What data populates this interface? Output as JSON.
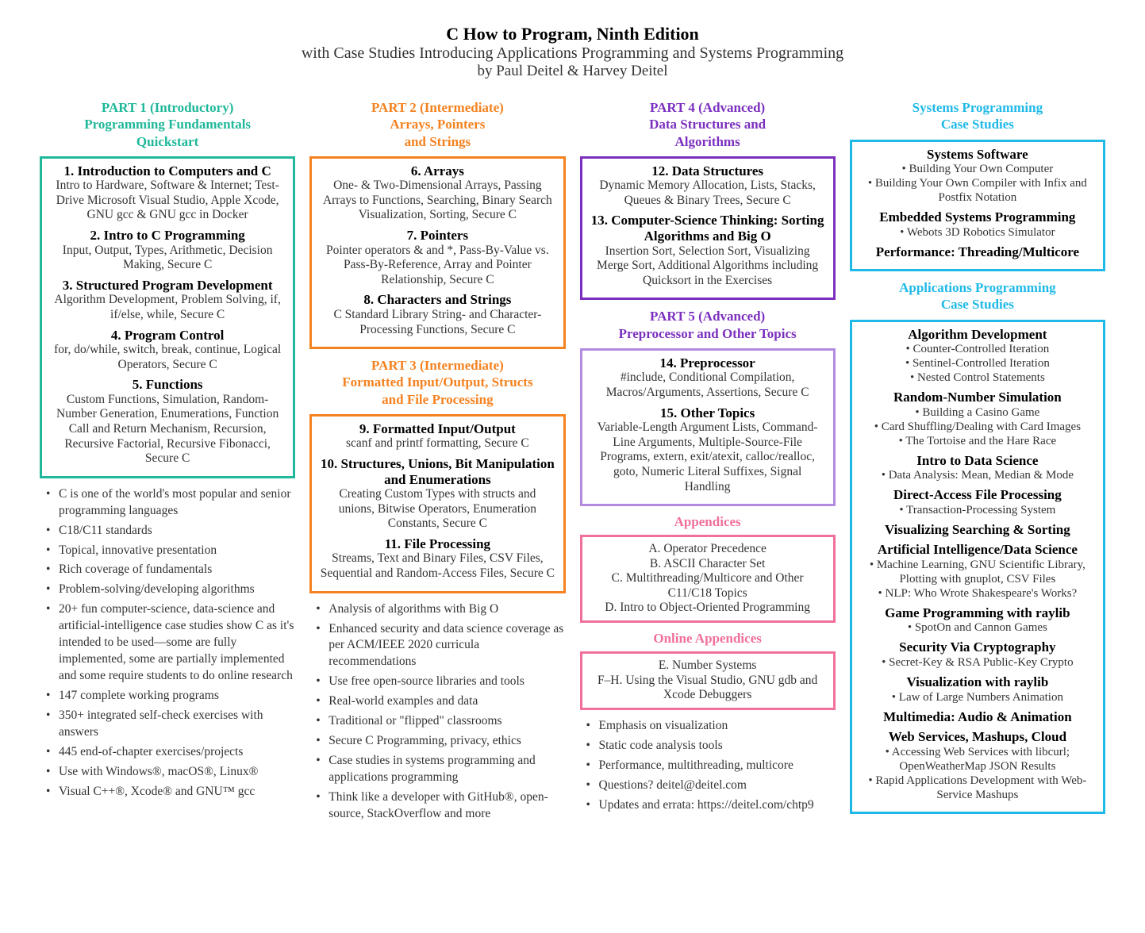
{
  "header": {
    "title": "C How to Program, Ninth Edition",
    "subtitle1": "with Case Studies Introducing Applications Programming and Systems Programming",
    "subtitle2": "by Paul Deitel & Harvey Deitel"
  },
  "colors": {
    "teal": "#1fb89a",
    "orange": "#f58220",
    "purple": "#7b2fbf",
    "lavender": "#b48ae0",
    "pink": "#f06f9b",
    "cyan": "#1fb9e8"
  },
  "part1": {
    "title": "PART 1 (Introductory)\nProgramming Fundamentals\nQuickstart",
    "chapters": [
      {
        "t": "1. Introduction to Computers and C",
        "d": "Intro to Hardware, Software & Internet; Test-Drive Microsoft Visual Studio, Apple Xcode, GNU gcc & GNU gcc in Docker"
      },
      {
        "t": "2. Intro to C Programming",
        "d": "Input, Output, Types, Arithmetic, Decision Making, Secure C"
      },
      {
        "t": "3. Structured Program Development",
        "d": "Algorithm Development, Problem Solving, if, if/else, while, Secure C"
      },
      {
        "t": "4. Program Control",
        "d": "for, do/while, switch, break, continue, Logical Operators, Secure C"
      },
      {
        "t": "5. Functions",
        "d": "Custom Functions, Simulation, Random-Number Generation, Enumerations, Function Call and Return Mechanism, Recursion, Recursive Factorial, Recursive Fibonacci, Secure C"
      }
    ]
  },
  "part2": {
    "title": "PART 2 (Intermediate)\nArrays, Pointers\nand Strings",
    "chapters": [
      {
        "t": "6. Arrays",
        "d": "One- & Two-Dimensional Arrays, Passing Arrays to Functions, Searching, Binary Search Visualization, Sorting, Secure C"
      },
      {
        "t": "7. Pointers",
        "d": "Pointer operators & and *, Pass-By-Value vs. Pass-By-Reference, Array and Pointer Relationship, Secure C"
      },
      {
        "t": "8. Characters and Strings",
        "d": "C Standard Library String- and Character-Processing Functions, Secure C"
      }
    ]
  },
  "part3": {
    "title": "PART 3 (Intermediate)\nFormatted Input/Output, Structs\nand File Processing",
    "chapters": [
      {
        "t": "9. Formatted Input/Output",
        "d": "scanf and printf formatting, Secure C"
      },
      {
        "t": "10. Structures, Unions, Bit Manipulation and Enumerations",
        "d": "Creating Custom Types with structs and unions, Bitwise Operators, Enumeration Constants, Secure C"
      },
      {
        "t": "11. File Processing",
        "d": "Streams, Text and Binary Files, CSV Files, Sequential and Random-Access Files, Secure C"
      }
    ]
  },
  "part4": {
    "title": "PART 4 (Advanced)\nData Structures and\nAlgorithms",
    "chapters": [
      {
        "t": "12. Data Structures",
        "d": "Dynamic Memory Allocation, Lists, Stacks, Queues & Binary Trees, Secure C"
      },
      {
        "t": "13. Computer-Science Thinking: Sorting Algorithms and Big O",
        "d": "Insertion Sort, Selection Sort, Visualizing Merge Sort, Additional Algorithms including Quicksort in the Exercises"
      }
    ]
  },
  "part5": {
    "title": "PART 5 (Advanced)\nPreprocessor and Other Topics",
    "chapters": [
      {
        "t": "14. Preprocessor",
        "d": "#include, Conditional Compilation, Macros/Arguments, Assertions, Secure C"
      },
      {
        "t": "15. Other Topics",
        "d": "Variable-Length Argument Lists, Command-Line Arguments, Multiple-Source-File Programs, extern, exit/atexit, calloc/realloc, goto, Numeric Literal Suffixes, Signal Handling"
      }
    ]
  },
  "appendices": {
    "title": "Appendices",
    "items": "A. Operator Precedence\nB. ASCII Character Set\nC. Multithreading/Multicore and Other C11/C18 Topics\nD. Intro to Object-Oriented Programming"
  },
  "online_appendices": {
    "title": "Online Appendices",
    "items": "E. Number Systems\nF–H. Using the Visual Studio, GNU gdb and Xcode Debuggers"
  },
  "bullets_col1": [
    "C is one of the world's most popular and senior programming languages",
    "C18/C11 standards",
    "Topical, innovative presentation",
    "Rich coverage of fundamentals",
    "Problem-solving/developing algorithms",
    "20+ fun computer-science, data-science and artificial-intelligence case studies show C as it's intended to be used—some are fully implemented, some are partially implemented and some require students to do online research",
    "147 complete working programs",
    "350+ integrated self-check exercises with answers",
    "445 end-of-chapter exercises/projects",
    "Use with Windows®, macOS®, Linux®",
    "Visual C++®, Xcode® and GNU™ gcc"
  ],
  "bullets_col2": [
    "Analysis of algorithms with Big O",
    "Enhanced security and data science coverage as per ACM/IEEE 2020 curricula recommendations",
    "Use free open-source libraries and tools",
    "Real-world examples and data",
    "Traditional or \"flipped\" classrooms",
    "Secure C Programming, privacy, ethics",
    "Case studies in systems programming and applications programming",
    "Think like a developer with GitHub®, open-source, StackOverflow and more"
  ],
  "bullets_col3": [
    "Emphasis on visualization",
    "Static code analysis tools",
    "Performance, multithreading, multicore",
    "Questions? deitel@deitel.com",
    "Updates and errata: https://deitel.com/chtp9"
  ],
  "systems_cs": {
    "title": "Systems Programming\nCase Studies",
    "sections": [
      {
        "t": "Systems Software",
        "items": [
          "Building Your Own Computer",
          "Building Your Own Compiler with Infix and Postfix Notation"
        ]
      },
      {
        "t": "Embedded Systems Programming",
        "items": [
          "Webots 3D Robotics Simulator"
        ]
      },
      {
        "t": "Performance: Threading/Multicore",
        "items": []
      }
    ]
  },
  "apps_cs": {
    "title": "Applications Programming\nCase Studies",
    "sections": [
      {
        "t": "Algorithm Development",
        "items": [
          "Counter-Controlled Iteration",
          "Sentinel-Controlled Iteration",
          "Nested Control Statements"
        ]
      },
      {
        "t": "Random-Number Simulation",
        "items": [
          "Building a Casino Game",
          "Card Shuffling/Dealing with Card Images",
          "The Tortoise and the Hare Race"
        ]
      },
      {
        "t": "Intro to Data Science",
        "items": [
          "Data Analysis: Mean, Median & Mode"
        ]
      },
      {
        "t": "Direct-Access File Processing",
        "items": [
          "Transaction-Processing System"
        ]
      },
      {
        "t": "Visualizing Searching & Sorting",
        "items": []
      },
      {
        "t": "Artificial Intelligence/Data Science",
        "items": [
          "Machine Learning, GNU Scientific Library, Plotting with gnuplot, CSV Files",
          "NLP: Who Wrote Shakespeare's Works?"
        ]
      },
      {
        "t": "Game Programming with raylib",
        "items": [
          "SpotOn and Cannon Games"
        ]
      },
      {
        "t": "Security Via Cryptography",
        "items": [
          "Secret-Key & RSA Public-Key Crypto"
        ]
      },
      {
        "t": "Visualization with raylib",
        "items": [
          "Law of Large Numbers Animation"
        ]
      },
      {
        "t": "Multimedia: Audio & Animation",
        "items": []
      },
      {
        "t": "Web Services, Mashups, Cloud",
        "items": [
          "Accessing Web Services with libcurl; OpenWeatherMap JSON Results",
          "Rapid Applications Development with Web-Service Mashups"
        ]
      }
    ]
  }
}
